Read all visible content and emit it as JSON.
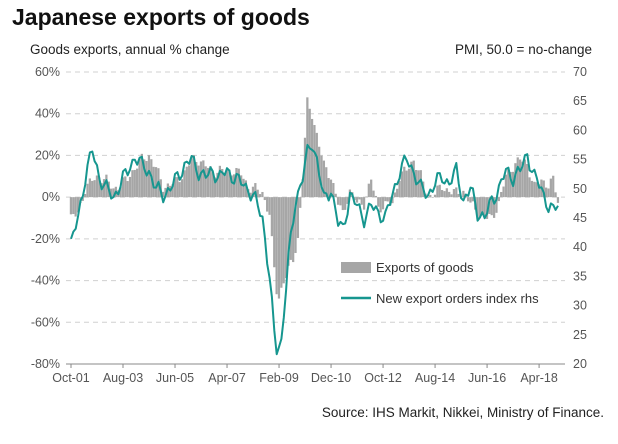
{
  "chart_data": {
    "type": "bar+line",
    "title": "Japanese exports of goods",
    "left_axis_label": "Goods exports, annual % change",
    "right_axis_label": "PMI, 50.0 = no-change",
    "source": "Source: IHS Markit, Nikkei, Ministry of Finance.",
    "y_left": {
      "min": -80,
      "max": 60,
      "ticks": [
        60,
        40,
        20,
        0,
        -20,
        -40,
        -60,
        -80
      ],
      "tick_labels": [
        "60%",
        "40%",
        "20%",
        "0%",
        "-20%",
        "-40%",
        "-60%",
        "-80%"
      ]
    },
    "y_right": {
      "min": 20,
      "max": 70,
      "ticks": [
        70,
        65,
        60,
        55,
        50,
        45,
        40,
        35,
        30,
        25,
        20
      ],
      "tick_labels": [
        "70",
        "65",
        "60",
        "55",
        "50",
        "45",
        "40",
        "35",
        "30",
        "25",
        "20"
      ]
    },
    "x_axis": {
      "start": "Oct-01",
      "end": "Dec-18",
      "period": "monthly",
      "ticks": [
        {
          "date": "2001-10",
          "label": "Oct-01"
        },
        {
          "date": "2003-08",
          "label": "Aug-03"
        },
        {
          "date": "2005-06",
          "label": "Jun-05"
        },
        {
          "date": "2007-04",
          "label": "Apr-07"
        },
        {
          "date": "2009-02",
          "label": "Feb-09"
        },
        {
          "date": "2010-12",
          "label": "Dec-10"
        },
        {
          "date": "2012-10",
          "label": "Oct-12"
        },
        {
          "date": "2014-08",
          "label": "Aug-14"
        },
        {
          "date": "2016-06",
          "label": "Jun-16"
        },
        {
          "date": "2018-04",
          "label": "Apr-18"
        }
      ]
    },
    "grid": "horizontal dashed",
    "legend_position": "center-right",
    "series": [
      {
        "name": "Exports of goods",
        "type": "bar",
        "axis": "left",
        "color": "#a6a6a6",
        "keypoints": [
          [
            "2001-10",
            -10
          ],
          [
            "2002-01",
            -8
          ],
          [
            "2002-04",
            4
          ],
          [
            "2002-07",
            8
          ],
          [
            "2002-10",
            10
          ],
          [
            "2003-01",
            8
          ],
          [
            "2003-04",
            4
          ],
          [
            "2003-07",
            6
          ],
          [
            "2003-10",
            9
          ],
          [
            "2004-01",
            14
          ],
          [
            "2004-04",
            18
          ],
          [
            "2004-07",
            20
          ],
          [
            "2004-10",
            14
          ],
          [
            "2005-01",
            5
          ],
          [
            "2005-04",
            6
          ],
          [
            "2005-07",
            8
          ],
          [
            "2005-10",
            12
          ],
          [
            "2006-01",
            18
          ],
          [
            "2006-04",
            18
          ],
          [
            "2006-07",
            15
          ],
          [
            "2006-10",
            12
          ],
          [
            "2007-01",
            13
          ],
          [
            "2007-04",
            12
          ],
          [
            "2007-07",
            13
          ],
          [
            "2007-10",
            11
          ],
          [
            "2008-01",
            5
          ],
          [
            "2008-04",
            4
          ],
          [
            "2008-07",
            2
          ],
          [
            "2008-10",
            -8
          ],
          [
            "2008-12",
            -35
          ],
          [
            "2009-01",
            -45
          ],
          [
            "2009-02",
            -48
          ],
          [
            "2009-04",
            -40
          ],
          [
            "2009-06",
            -35
          ],
          [
            "2009-08",
            -30
          ],
          [
            "2009-10",
            -20
          ],
          [
            "2009-12",
            10
          ],
          [
            "2010-02",
            45
          ],
          [
            "2010-04",
            40
          ],
          [
            "2010-06",
            30
          ],
          [
            "2010-09",
            15
          ],
          [
            "2010-12",
            10
          ],
          [
            "2011-03",
            -3
          ],
          [
            "2011-05",
            -8
          ],
          [
            "2011-08",
            3
          ],
          [
            "2011-11",
            -3
          ],
          [
            "2012-02",
            -3
          ],
          [
            "2012-05",
            8
          ],
          [
            "2012-08",
            -5
          ],
          [
            "2012-11",
            -4
          ],
          [
            "2013-02",
            -3
          ],
          [
            "2013-05",
            10
          ],
          [
            "2013-08",
            13
          ],
          [
            "2013-11",
            18
          ],
          [
            "2014-02",
            10
          ],
          [
            "2014-05",
            0
          ],
          [
            "2014-08",
            2
          ],
          [
            "2014-11",
            5
          ],
          [
            "2015-02",
            3
          ],
          [
            "2015-05",
            2
          ],
          [
            "2015-08",
            3
          ],
          [
            "2015-11",
            -3
          ],
          [
            "2016-02",
            -8
          ],
          [
            "2016-05",
            -10
          ],
          [
            "2016-08",
            -10
          ],
          [
            "2016-11",
            -3
          ],
          [
            "2017-02",
            10
          ],
          [
            "2017-05",
            15
          ],
          [
            "2017-08",
            18
          ],
          [
            "2017-11",
            16
          ],
          [
            "2018-02",
            5
          ],
          [
            "2018-05",
            8
          ],
          [
            "2018-08",
            6
          ],
          [
            "2018-10",
            8
          ],
          [
            "2018-12",
            -2
          ]
        ]
      },
      {
        "name": "New export orders index rhs",
        "type": "line",
        "axis": "right",
        "color": "#16968f",
        "keypoints": [
          [
            "2001-10",
            40.5
          ],
          [
            "2002-01",
            45
          ],
          [
            "2002-04",
            52
          ],
          [
            "2002-07",
            56.5
          ],
          [
            "2002-10",
            52
          ],
          [
            "2003-01",
            50
          ],
          [
            "2003-04",
            48.5
          ],
          [
            "2003-07",
            51
          ],
          [
            "2003-10",
            53
          ],
          [
            "2004-01",
            55.5
          ],
          [
            "2004-04",
            54
          ],
          [
            "2004-07",
            53
          ],
          [
            "2004-10",
            50
          ],
          [
            "2005-01",
            49
          ],
          [
            "2005-04",
            50
          ],
          [
            "2005-07",
            52
          ],
          [
            "2005-10",
            54
          ],
          [
            "2006-01",
            55
          ],
          [
            "2006-04",
            53
          ],
          [
            "2006-07",
            52
          ],
          [
            "2006-10",
            53
          ],
          [
            "2007-01",
            52
          ],
          [
            "2007-04",
            53
          ],
          [
            "2007-07",
            52
          ],
          [
            "2007-10",
            51
          ],
          [
            "2008-01",
            50
          ],
          [
            "2008-04",
            48
          ],
          [
            "2008-07",
            45
          ],
          [
            "2008-10",
            35
          ],
          [
            "2008-12",
            25
          ],
          [
            "2009-01",
            22.5
          ],
          [
            "2009-03",
            24
          ],
          [
            "2009-06",
            38
          ],
          [
            "2009-09",
            48
          ],
          [
            "2009-12",
            52
          ],
          [
            "2010-02",
            56
          ],
          [
            "2010-04",
            58
          ],
          [
            "2010-06",
            55
          ],
          [
            "2010-09",
            48
          ],
          [
            "2010-12",
            50
          ],
          [
            "2011-03",
            44
          ],
          [
            "2011-05",
            43
          ],
          [
            "2011-08",
            49
          ],
          [
            "2011-11",
            47
          ],
          [
            "2012-02",
            45
          ],
          [
            "2012-05",
            47
          ],
          [
            "2012-08",
            46
          ],
          [
            "2012-11",
            45
          ],
          [
            "2013-02",
            49
          ],
          [
            "2013-05",
            53
          ],
          [
            "2013-08",
            55
          ],
          [
            "2013-11",
            53
          ],
          [
            "2014-02",
            50
          ],
          [
            "2014-05",
            49
          ],
          [
            "2014-08",
            51
          ],
          [
            "2014-11",
            52
          ],
          [
            "2015-02",
            51
          ],
          [
            "2015-05",
            53
          ],
          [
            "2015-08",
            48
          ],
          [
            "2015-11",
            50
          ],
          [
            "2016-02",
            46
          ],
          [
            "2016-05",
            45
          ],
          [
            "2016-08",
            48
          ],
          [
            "2016-11",
            50
          ],
          [
            "2017-02",
            53
          ],
          [
            "2017-05",
            52
          ],
          [
            "2017-08",
            53
          ],
          [
            "2017-11",
            56
          ],
          [
            "2018-02",
            52
          ],
          [
            "2018-05",
            50
          ],
          [
            "2018-08",
            47
          ],
          [
            "2018-10",
            46
          ],
          [
            "2018-12",
            47.5
          ]
        ]
      }
    ]
  }
}
